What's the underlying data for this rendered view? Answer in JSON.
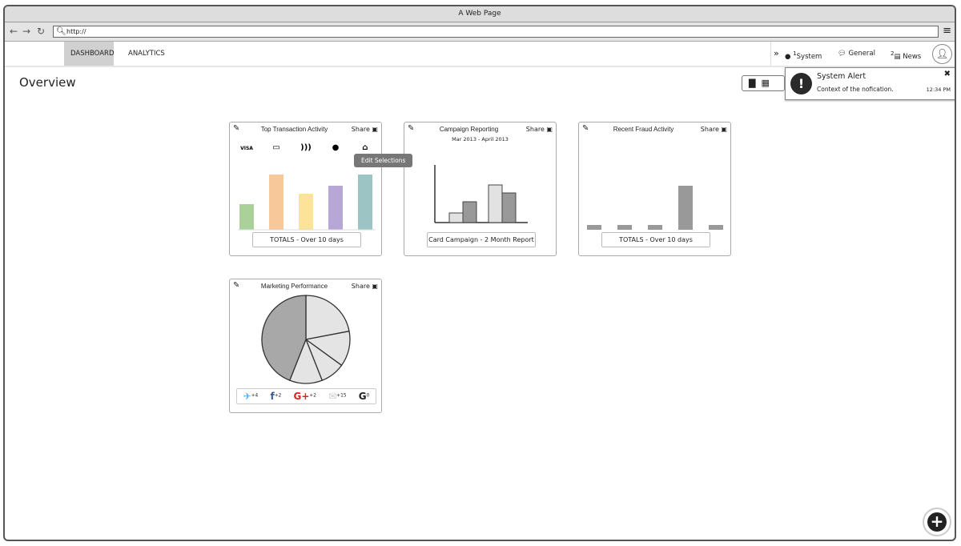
{
  "window": {
    "title": "A Web Page",
    "url": "http://"
  },
  "nav": {
    "tabs": [
      {
        "label": "DASHBOARD",
        "active": true
      },
      {
        "label": "ANALYTICS",
        "active": false
      }
    ],
    "notifications": [
      {
        "label": "System",
        "badge": "1",
        "icon": "exclamation-icon"
      },
      {
        "label": "General",
        "icon": "chat-bubble-icon"
      },
      {
        "label": "News",
        "badge": "2",
        "icon": "newspaper-icon"
      }
    ]
  },
  "page": {
    "title": "Overview"
  },
  "alert": {
    "title": "System Alert",
    "message": "Context of the nofication.",
    "time": "12:34 PM"
  },
  "tooltip": "Edit Selections",
  "cards": [
    {
      "title": "Top Transaction Activity",
      "share": "Share",
      "footer": "TOTALS - Over 10 days",
      "icons": [
        "visa-icon",
        "credit-card-icon",
        "contactless-icon",
        "apple-icon",
        "bank-icon"
      ],
      "chart_data": {
        "type": "bar",
        "values": [
          32,
          69,
          45,
          55,
          69
        ],
        "colors": [
          "#aad19a",
          "#f7c99a",
          "#fde39a",
          "#b7a7d6",
          "#9dc4c4"
        ]
      }
    },
    {
      "title": "Campaign Reporting",
      "subtitle": "Mar 2013 - April 2013",
      "share": "Share",
      "footer": "Card Campaign - 2 Month Report",
      "chart_data": {
        "type": "bar",
        "series": [
          {
            "values": [
              12,
              47
            ],
            "color": "#e2e2e2"
          },
          {
            "values": [
              26,
              37
            ],
            "color": "#999999"
          }
        ]
      }
    },
    {
      "title": "Recent Fraud Activity",
      "share": "Share",
      "footer": "TOTALS - Over 10 days",
      "chart_data": {
        "type": "bar",
        "values": [
          6,
          6,
          6,
          55,
          6
        ],
        "color": "#999999"
      }
    },
    {
      "title": "Marketing Performance",
      "share": "Share",
      "chart_data": {
        "type": "pie",
        "values": [
          22,
          13,
          9,
          12,
          44
        ],
        "colors": [
          "#e4e4e4",
          "#e4e4e4",
          "#e4e4e4",
          "#e4e4e4",
          "#a8a8a8"
        ]
      },
      "social": [
        {
          "icon": "twitter-icon",
          "count": "+4",
          "color": "#55acee"
        },
        {
          "icon": "facebook-icon",
          "count": "+2",
          "color": "#3b5998"
        },
        {
          "icon": "google-plus-icon",
          "count": "+2",
          "color": "#dd2222"
        },
        {
          "icon": "email-icon",
          "count": "+15",
          "color": "#cccccc"
        },
        {
          "icon": "google-icon",
          "count": "0",
          "color": "#222222"
        }
      ]
    }
  ]
}
